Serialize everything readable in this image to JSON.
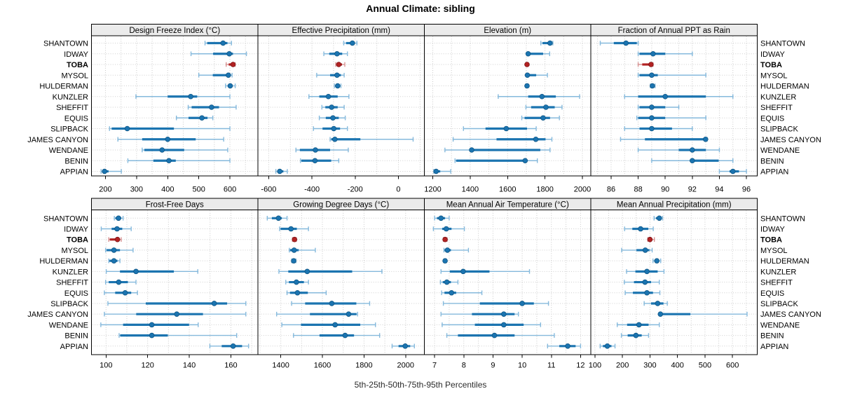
{
  "title": "Annual Climate: sibling",
  "caption": "5th-25th-50th-75th-95th Percentiles",
  "chart_data": {
    "type": "dot-interval (trellis percentile whisker plot)",
    "percentiles": [
      5,
      25,
      50,
      75,
      95
    ],
    "stations": [
      "SHANTOWN",
      "IDWAY",
      "TOBA",
      "MYSOL",
      "HULDERMAN",
      "KUNZLER",
      "SHEFFIT",
      "EQUIS",
      "SLIPBACK",
      "JAMES CANYON",
      "WENDANE",
      "BENIN",
      "APPIAN"
    ],
    "highlight_station": "TOBA",
    "grid": "dotted",
    "legend_position": "none",
    "colors": {
      "series_main": "#1B74B0",
      "series_light": "#85B9DC",
      "series_dot_edge": "#0E5584",
      "highlight_main": "#B22222",
      "highlight_light": "#D89494",
      "highlight_dot_edge": "#7E1518",
      "gridline": "#C9C9C9",
      "row_guide": "#CFCFCF",
      "header_bg": "#EBEBEB",
      "border": "#000000"
    },
    "panels": [
      {
        "label": "Design Freeze Index (°C)",
        "band": 0,
        "xlim": [
          155,
          690
        ],
        "ticks": [
          200,
          300,
          400,
          500,
          600
        ],
        "grid_interval": 50,
        "values": [
          [
            520,
            527,
            578,
            592,
            605
          ],
          [
            475,
            546,
            598,
            610,
            653
          ],
          [
            588,
            596,
            610,
            613,
            617
          ],
          [
            500,
            545,
            595,
            602,
            607
          ],
          [
            586,
            593,
            601,
            608,
            617
          ],
          [
            298,
            400,
            474,
            495,
            600
          ],
          [
            466,
            477,
            541,
            565,
            620
          ],
          [
            428,
            467,
            510,
            528,
            545
          ],
          [
            213,
            220,
            270,
            420,
            600
          ],
          [
            240,
            318,
            400,
            490,
            580
          ],
          [
            318,
            325,
            382,
            453,
            593
          ],
          [
            272,
            354,
            404,
            426,
            600
          ],
          [
            186,
            190,
            197,
            210,
            251
          ]
        ]
      },
      {
        "label": "Effective Precipitation (mm)",
        "band": 0,
        "xlim": [
          -650,
          120
        ],
        "ticks": [
          -600,
          -400,
          -200,
          0
        ],
        "grid_interval": 100,
        "values": [
          [
            -253,
            -242,
            -213,
            -201,
            -192
          ],
          [
            -345,
            -320,
            -284,
            -260,
            -236
          ],
          [
            -290,
            -284,
            -276,
            -261,
            -248
          ],
          [
            -378,
            -316,
            -284,
            -266,
            -251
          ],
          [
            -296,
            -290,
            -281,
            -272,
            -266
          ],
          [
            -414,
            -366,
            -324,
            -281,
            -229
          ],
          [
            -354,
            -338,
            -309,
            -281,
            -251
          ],
          [
            -366,
            -336,
            -303,
            -276,
            -246
          ],
          [
            -393,
            -351,
            -299,
            -270,
            -236
          ],
          [
            -316,
            -311,
            -294,
            -176,
            68
          ],
          [
            -474,
            -456,
            -384,
            -316,
            -232
          ],
          [
            -453,
            -449,
            -386,
            -311,
            -276
          ],
          [
            -567,
            -558,
            -549,
            -532,
            -514
          ]
        ]
      },
      {
        "label": "Elevation (m)",
        "band": 0,
        "xlim": [
          1155,
          2045
        ],
        "ticks": [
          1200,
          1400,
          1600,
          1800,
          2000
        ],
        "grid_interval": 100,
        "values": [
          [
            1778,
            1787,
            1827,
            1837,
            1842
          ],
          [
            1704,
            1706,
            1710,
            1790,
            1825
          ],
          [
            1701,
            1702,
            1704,
            1705,
            1707
          ],
          [
            1701,
            1704,
            1706,
            1753,
            1813
          ],
          [
            1697,
            1700,
            1704,
            1707,
            1710
          ],
          [
            1550,
            1710,
            1784,
            1858,
            1985
          ],
          [
            1698,
            1726,
            1805,
            1852,
            1891
          ],
          [
            1676,
            1691,
            1790,
            1827,
            1877
          ],
          [
            1364,
            1482,
            1593,
            1704,
            1753
          ],
          [
            1309,
            1541,
            1751,
            1803,
            1837
          ],
          [
            1265,
            1398,
            1408,
            1775,
            1827
          ],
          [
            1319,
            1325,
            1694,
            1700,
            1759
          ],
          [
            1205,
            1210,
            1218,
            1240,
            1296
          ]
        ]
      },
      {
        "label": "Fraction of Annual PPT as Rain",
        "band": 0,
        "xlim": [
          84.5,
          96.8
        ],
        "ticks": [
          86,
          88,
          90,
          92,
          94,
          96
        ],
        "grid_interval": 1,
        "values": [
          [
            85.2,
            86.2,
            87.1,
            87.9,
            88.0
          ],
          [
            88.0,
            88.1,
            89.1,
            90.0,
            92.0
          ],
          [
            88.0,
            88.3,
            88.95,
            89.0,
            89.1
          ],
          [
            88.0,
            88.1,
            89.0,
            89.45,
            93.0
          ],
          [
            88.9,
            89.0,
            89.05,
            89.15,
            89.25
          ],
          [
            87.0,
            88.0,
            90.0,
            93.0,
            95.0
          ],
          [
            88.0,
            88.1,
            89.0,
            90.0,
            91.0
          ],
          [
            87.9,
            88.0,
            89.0,
            90.0,
            93.0
          ],
          [
            87.0,
            88.1,
            89.0,
            90.5,
            92.0
          ],
          [
            86.7,
            88.5,
            92.98,
            93.05,
            93.1
          ],
          [
            88.0,
            91.0,
            92.0,
            93.0,
            94.0
          ],
          [
            89.0,
            91.9,
            92.0,
            93.95,
            95.0
          ],
          [
            94.0,
            94.75,
            95.0,
            95.45,
            96.0
          ]
        ]
      },
      {
        "label": "Frost-Free Days",
        "band": 1,
        "xlim": [
          93,
          173
        ],
        "ticks": [
          100,
          120,
          140,
          160
        ],
        "grid_interval": 10,
        "values": [
          [
            104,
            104.5,
            106,
            107.3,
            108.2
          ],
          [
            97.7,
            102.7,
            105.3,
            107.8,
            112.1
          ],
          [
            101.3,
            101.8,
            105.5,
            106.7,
            107.3
          ],
          [
            99.8,
            100.3,
            103.8,
            106.7,
            113
          ],
          [
            101.3,
            101.6,
            103.8,
            105.5,
            106.7
          ],
          [
            100.1,
            106.7,
            114.4,
            132.6,
            144.1
          ],
          [
            99.8,
            101.3,
            106.1,
            110.5,
            114.4
          ],
          [
            99.2,
            104.4,
            109.2,
            112.1,
            115.1
          ],
          [
            100.9,
            119.1,
            152,
            158.2,
            167.2
          ],
          [
            99.2,
            114.5,
            134,
            146.6,
            167.2
          ],
          [
            97.5,
            108.2,
            122,
            139.9,
            144.3
          ],
          [
            106.3,
            106.8,
            122,
            129.7,
            162.8
          ],
          [
            149.9,
            155.6,
            161.1,
            165.4,
            168.5
          ]
        ]
      },
      {
        "label": "Growing Degree Days (°C)",
        "band": 1,
        "xlim": [
          1290,
          2090
        ],
        "ticks": [
          1400,
          1600,
          1800,
          2000
        ],
        "grid_interval": 100,
        "values": [
          [
            1335,
            1357,
            1389,
            1405,
            1430
          ],
          [
            1394,
            1399,
            1449,
            1477,
            1533
          ],
          [
            1456,
            1460,
            1466,
            1471,
            1475
          ],
          [
            1441,
            1444,
            1464,
            1486,
            1566
          ],
          [
            1452,
            1456,
            1462,
            1468,
            1473
          ],
          [
            1391,
            1436,
            1527,
            1743,
            1886
          ],
          [
            1424,
            1439,
            1475,
            1511,
            1533
          ],
          [
            1430,
            1444,
            1480,
            1530,
            1618
          ],
          [
            1452,
            1517,
            1645,
            1763,
            1827
          ],
          [
            1380,
            1540,
            1726,
            1764,
            1769
          ],
          [
            1405,
            1497,
            1661,
            1782,
            1855
          ],
          [
            1461,
            1586,
            1709,
            1752,
            1875
          ],
          [
            1935,
            1966,
            1998,
            2022,
            2042
          ]
        ]
      },
      {
        "label": "Mean Annual Air Temperature (°C)",
        "band": 1,
        "xlim": [
          6.65,
          12.35
        ],
        "ticks": [
          7,
          8,
          9,
          10,
          11,
          12
        ],
        "grid_interval": 0.5,
        "values": [
          [
            7.0,
            7.08,
            7.22,
            7.36,
            7.5
          ],
          [
            6.96,
            7.26,
            7.4,
            7.58,
            8.02
          ],
          [
            7.3,
            7.33,
            7.36,
            7.39,
            7.43
          ],
          [
            7.32,
            7.34,
            7.44,
            7.56,
            8.16
          ],
          [
            7.32,
            7.34,
            7.36,
            7.38,
            7.4
          ],
          [
            7.22,
            7.52,
            7.98,
            8.88,
            10.25
          ],
          [
            7.2,
            7.28,
            7.42,
            7.56,
            7.8
          ],
          [
            7.24,
            7.34,
            7.58,
            7.74,
            8.62
          ],
          [
            7.3,
            8.55,
            10.0,
            10.4,
            10.9
          ],
          [
            7.22,
            8.28,
            9.37,
            9.74,
            9.87
          ],
          [
            7.26,
            8.38,
            9.37,
            10.05,
            10.63
          ],
          [
            7.42,
            7.8,
            9.05,
            9.74,
            11.1
          ],
          [
            10.87,
            11.27,
            11.56,
            11.83,
            12.0
          ]
        ]
      },
      {
        "label": "Mean Annual Precipitation (mm)",
        "band": 1,
        "xlim": [
          85,
          690
        ],
        "ticks": [
          100,
          200,
          300,
          400,
          500,
          600
        ],
        "grid_interval": 50,
        "values": [
          [
            315,
            322,
            334,
            342,
            346
          ],
          [
            208,
            236,
            266,
            294,
            312
          ],
          [
            292,
            295,
            300,
            308,
            316
          ],
          [
            197,
            251,
            283,
            298,
            308
          ],
          [
            311,
            318,
            325,
            332,
            339
          ],
          [
            215,
            247,
            289,
            328,
            351
          ],
          [
            207,
            242,
            282,
            304,
            334
          ],
          [
            210,
            238,
            289,
            311,
            336
          ],
          [
            279,
            304,
            328,
            349,
            363
          ],
          [
            334,
            336,
            338,
            447,
            653
          ],
          [
            181,
            217,
            260,
            295,
            334
          ],
          [
            196,
            219,
            249,
            270,
            295
          ],
          [
            119,
            129,
            145,
            160,
            173
          ]
        ]
      }
    ]
  }
}
